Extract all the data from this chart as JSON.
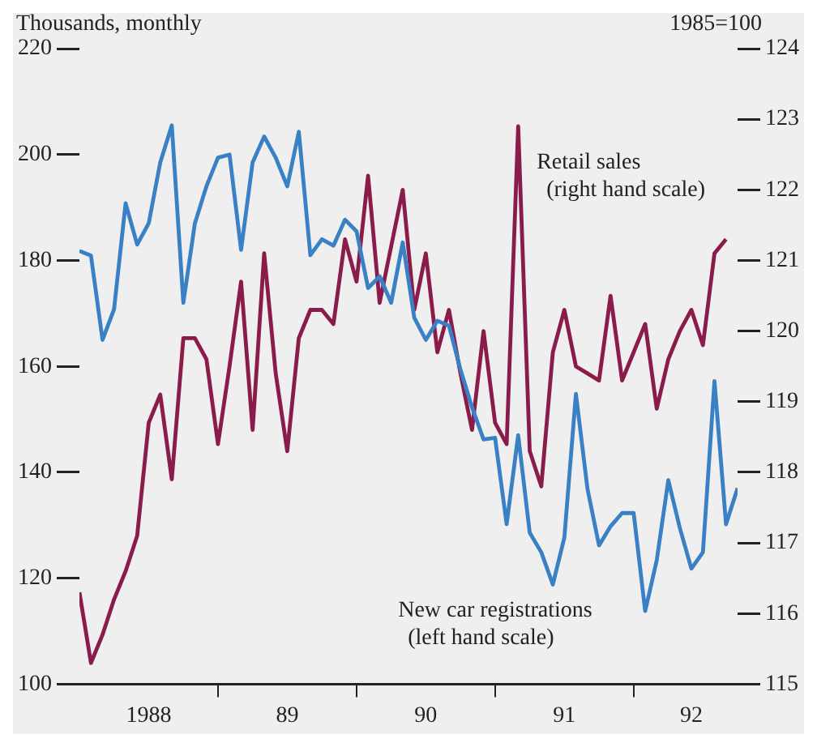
{
  "chart_data": {
    "type": "line",
    "ylabel": "Thousands, monthly",
    "y2label": "1985=100",
    "legend": false,
    "grid": false,
    "marker": "none",
    "line_style": "solid",
    "x": [
      "1988-01",
      "1988-02",
      "1988-03",
      "1988-04",
      "1988-05",
      "1988-06",
      "1988-07",
      "1988-08",
      "1988-09",
      "1988-10",
      "1988-11",
      "1988-12",
      "1989-01",
      "1989-02",
      "1989-03",
      "1989-04",
      "1989-05",
      "1989-06",
      "1989-07",
      "1989-08",
      "1989-09",
      "1989-10",
      "1989-11",
      "1989-12",
      "1990-01",
      "1990-02",
      "1990-03",
      "1990-04",
      "1990-05",
      "1990-06",
      "1990-07",
      "1990-08",
      "1990-09",
      "1990-10",
      "1990-11",
      "1990-12",
      "1991-01",
      "1991-02",
      "1991-03",
      "1991-04",
      "1991-05",
      "1991-06",
      "1991-07",
      "1991-08",
      "1991-09",
      "1991-10",
      "1991-11",
      "1991-12",
      "1992-01",
      "1992-02",
      "1992-03",
      "1992-04",
      "1992-05",
      "1992-06",
      "1992-07",
      "1992-08",
      "1992-09",
      "1992-10"
    ],
    "xlim": [
      "1988-01",
      "1992-10"
    ],
    "xticks": [
      {
        "value": "1988-07",
        "label": "1988"
      },
      {
        "value": "1989-01",
        "label": null
      },
      {
        "value": "1989-07",
        "label": "89"
      },
      {
        "value": "1990-01",
        "label": null
      },
      {
        "value": "1990-07",
        "label": "90"
      },
      {
        "value": "1991-01",
        "label": null
      },
      {
        "value": "1991-07",
        "label": "91"
      },
      {
        "value": "1992-01",
        "label": null
      },
      {
        "value": "1992-06",
        "label": "92"
      }
    ],
    "ylim": [
      100,
      220
    ],
    "yticks": [
      100,
      120,
      140,
      160,
      180,
      200,
      220
    ],
    "y2lim": [
      115,
      124
    ],
    "y2ticks": [
      115,
      116,
      117,
      118,
      119,
      120,
      121,
      122,
      123,
      124
    ],
    "series": [
      {
        "name": "New car registrations (left hand scale)",
        "color": "#3a80c4",
        "values": [
          181.8,
          180.9,
          165,
          170.8,
          190.8,
          183,
          187,
          198.5,
          205.5,
          172,
          187,
          194,
          199.4,
          200,
          182,
          198.5,
          203.4,
          199.4,
          194,
          204.3,
          181,
          184,
          182.8,
          187.7,
          185.5,
          174.8,
          177,
          172,
          183.4,
          169.2,
          165,
          168.6,
          167.7,
          159.4,
          152.3,
          146.2,
          146.5,
          130.2,
          147,
          128.6,
          124.9,
          118.8,
          127.7,
          154.8,
          136.9,
          126.2,
          129.8,
          132.3,
          132.3,
          113.8,
          123.4,
          138.5,
          129.5,
          121.8,
          124.9,
          157.2,
          130.2,
          137
        ]
      },
      {
        "name": "Retail sales (right hand scale)",
        "color": "#8a1c4c",
        "axis": "y2",
        "x": [
          "1988-01",
          "1988-02",
          "1988-03",
          "1988-04",
          "1988-05",
          "1988-06",
          "1988-07",
          "1988-08",
          "1988-09",
          "1988-10",
          "1988-11",
          "1988-12",
          "1989-01",
          "1989-02",
          "1989-03",
          "1989-04",
          "1989-05",
          "1989-06",
          "1989-07",
          "1989-08",
          "1989-09",
          "1989-10",
          "1989-11",
          "1989-12",
          "1990-01",
          "1990-02",
          "1990-03",
          "1990-04",
          "1990-05",
          "1990-06",
          "1990-07",
          "1990-08",
          "1990-09",
          "1990-10",
          "1990-11",
          "1990-12",
          "1991-01",
          "1991-02",
          "1991-03",
          "1991-04",
          "1991-05",
          "1991-06",
          "1991-07",
          "1991-08",
          "1991-09",
          "1991-10",
          "1991-11",
          "1991-12",
          "1992-01",
          "1992-02",
          "1992-03",
          "1992-04",
          "1992-05",
          "1992-06",
          "1992-07",
          "1992-08",
          "1992-09"
        ],
        "values": [
          116.3,
          115.3,
          115.7,
          116.2,
          116.6,
          117.1,
          118.7,
          119.1,
          117.9,
          119.9,
          119.9,
          119.6,
          118.4,
          119.5,
          120.7,
          118.6,
          121.1,
          119.4,
          118.3,
          119.9,
          120.3,
          120.3,
          120.1,
          121.3,
          120.7,
          122.2,
          120.4,
          121.2,
          122,
          120.3,
          121.1,
          119.7,
          120.3,
          119.4,
          118.6,
          120,
          118.7,
          118.4,
          122.9,
          118.3,
          117.8,
          119.7,
          120.3,
          119.5,
          119.4,
          119.3,
          120.5,
          119.3,
          119.7,
          120.1,
          118.9,
          119.6,
          120,
          120.3,
          119.8,
          121.1,
          121.3
        ]
      }
    ]
  }
}
